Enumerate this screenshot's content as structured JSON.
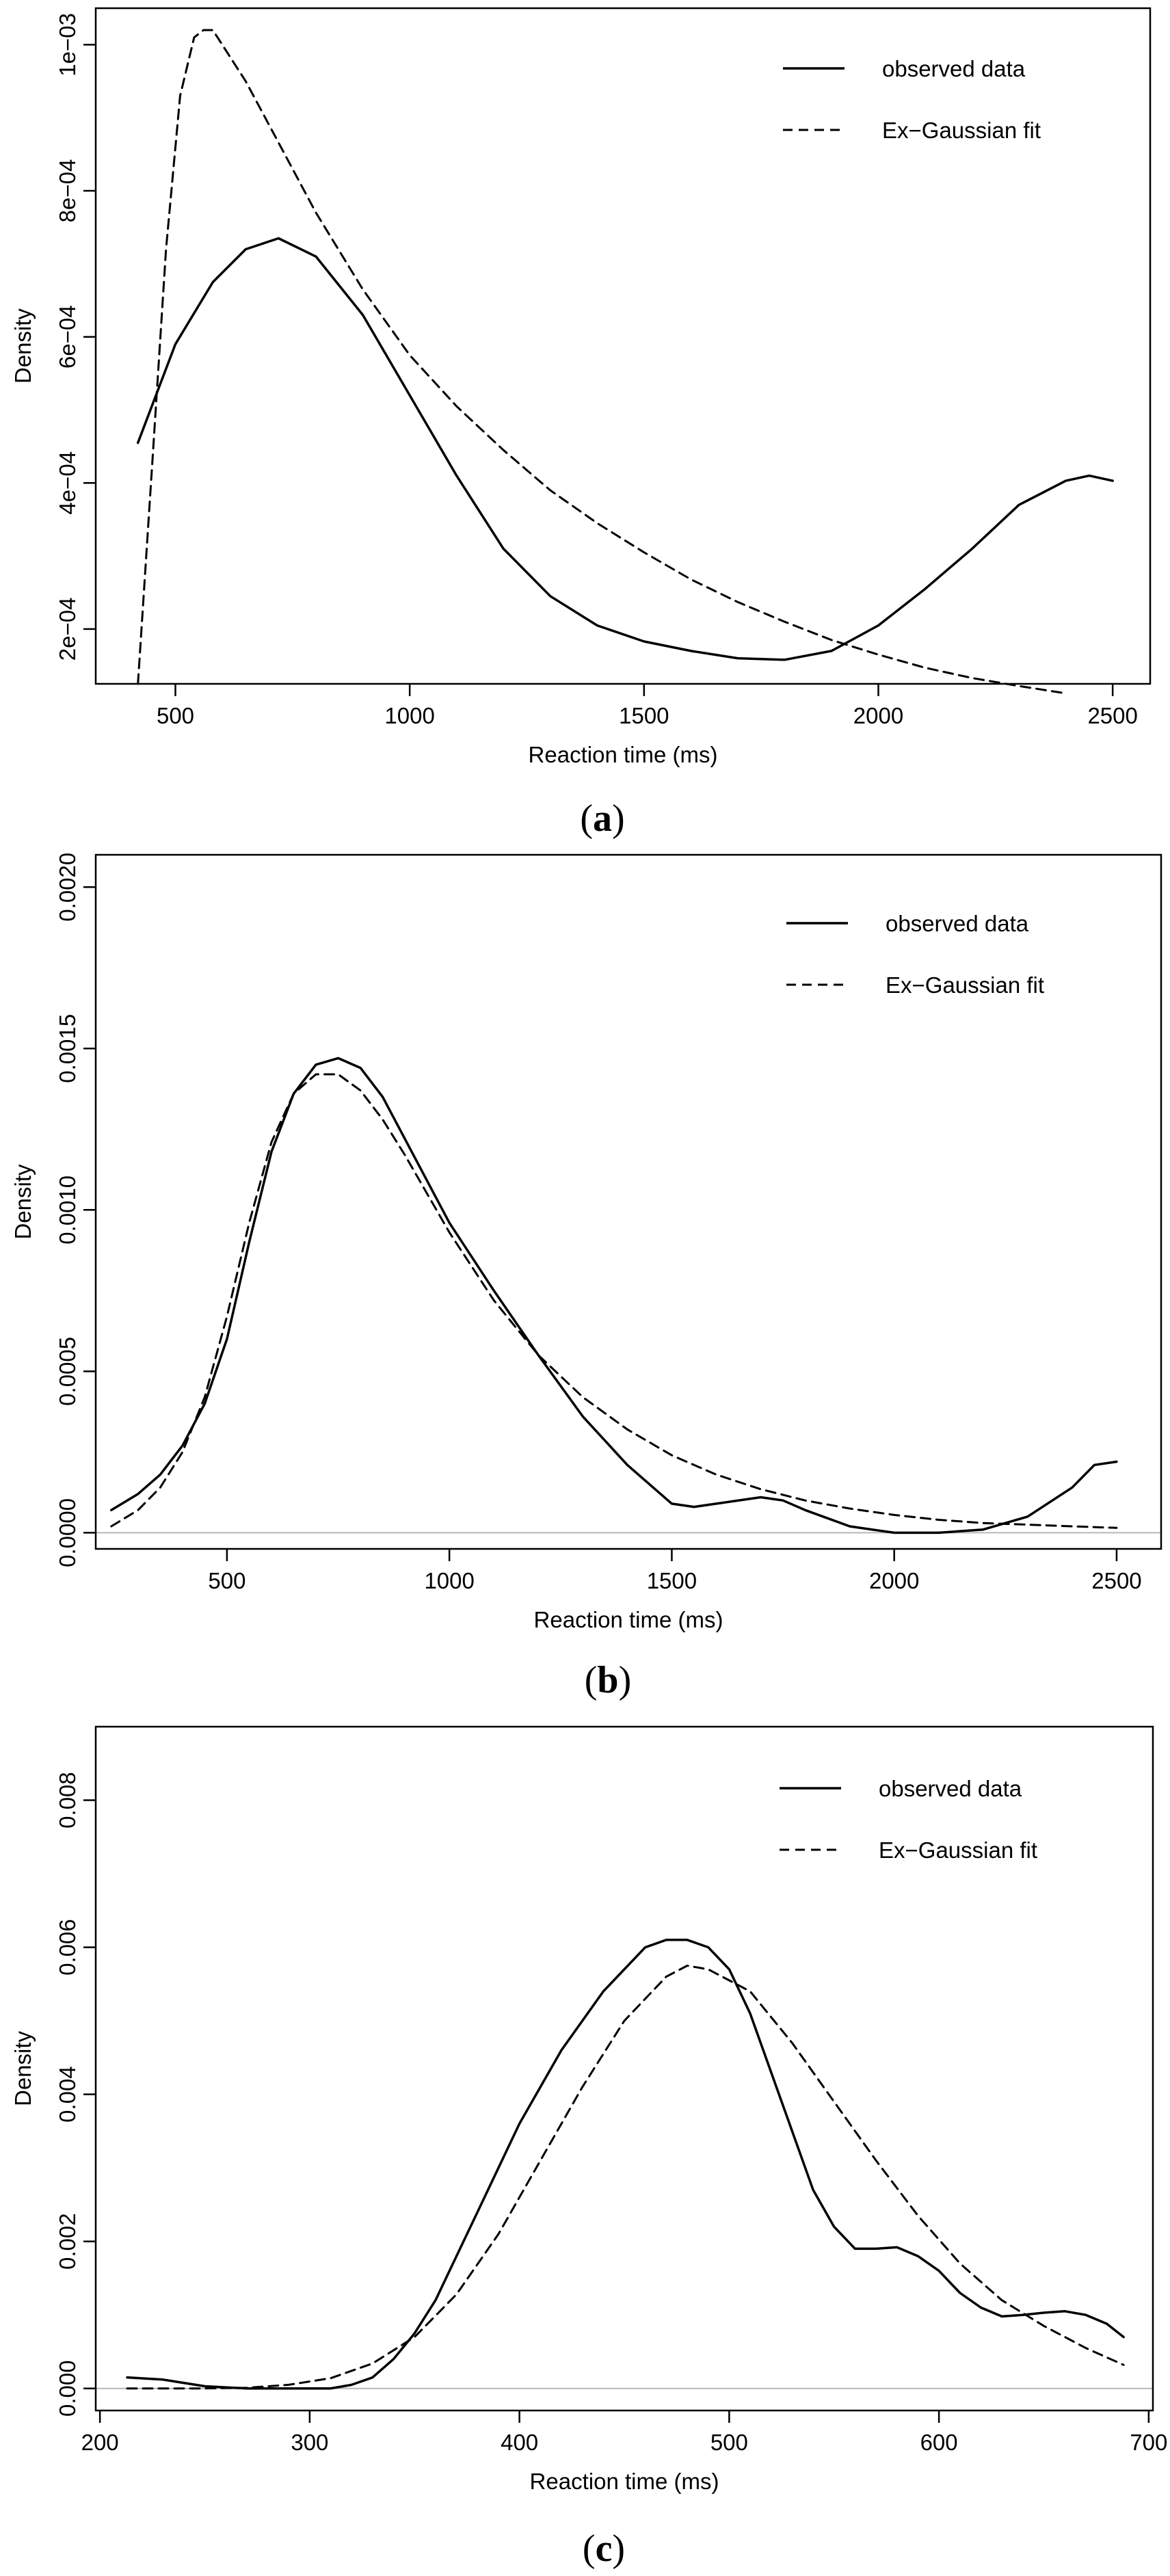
{
  "chart_data": [
    {
      "type": "line",
      "panel": "a",
      "xlabel": "Reaction time (ms)",
      "ylabel": "Density",
      "xlim": [
        330,
        2580
      ],
      "ylim": [
        0.000125,
        0.00105
      ],
      "xticks": [
        500,
        1000,
        1500,
        2000,
        2500
      ],
      "xtick_labels": [
        "500",
        "1000",
        "1500",
        "2000",
        "2500"
      ],
      "yticks": [
        0.0002,
        0.0004,
        0.0006,
        0.0008,
        0.001
      ],
      "ytick_labels": [
        "2e−04",
        "4e−04",
        "6e−04",
        "8e−04",
        "1e−03"
      ],
      "zero_line": false,
      "legend": [
        "observed data",
        "Ex−Gaussian fit"
      ],
      "legend_position": "top-right",
      "series": [
        {
          "name": "observed data",
          "style": "solid",
          "x": [
            420,
            500,
            580,
            650,
            720,
            800,
            900,
            1000,
            1100,
            1200,
            1300,
            1400,
            1500,
            1600,
            1700,
            1800,
            1900,
            2000,
            2100,
            2200,
            2300,
            2400,
            2450,
            2500
          ],
          "y": [
            0.000455,
            0.00059,
            0.000675,
            0.00072,
            0.000735,
            0.00071,
            0.00063,
            0.00052,
            0.00041,
            0.00031,
            0.000245,
            0.000205,
            0.000183,
            0.00017,
            0.00016,
            0.000158,
            0.00017,
            0.000205,
            0.000255,
            0.00031,
            0.00037,
            0.000403,
            0.00041,
            0.000403
          ]
        },
        {
          "name": "Ex−Gaussian fit",
          "style": "dashed",
          "x": [
            420,
            450,
            480,
            510,
            540,
            560,
            580,
            600,
            650,
            700,
            800,
            900,
            1000,
            1100,
            1200,
            1300,
            1400,
            1500,
            1600,
            1700,
            1800,
            1900,
            2000,
            2100,
            2200,
            2300,
            2400
          ],
          "y": [
            0.000125,
            0.00042,
            0.00072,
            0.00093,
            0.00101,
            0.00102,
            0.00102,
            0.001,
            0.00095,
            0.00089,
            0.00077,
            0.000665,
            0.000575,
            0.000505,
            0.000445,
            0.00039,
            0.000345,
            0.000305,
            0.000268,
            0.000237,
            0.00021,
            0.000185,
            0.000165,
            0.000147,
            0.000133,
            0.000122,
            0.000112
          ]
        }
      ]
    },
    {
      "type": "line",
      "panel": "b",
      "xlabel": "Reaction time (ms)",
      "ylabel": "Density",
      "xlim": [
        205,
        2600
      ],
      "ylim": [
        -5e-05,
        0.0021
      ],
      "xticks": [
        500,
        1000,
        1500,
        2000,
        2500
      ],
      "xtick_labels": [
        "500",
        "1000",
        "1500",
        "2000",
        "2500"
      ],
      "yticks": [
        0,
        0.0005,
        0.001,
        0.0015,
        0.002
      ],
      "ytick_labels": [
        "0.0000",
        "0.0005",
        "0.0010",
        "0.0015",
        "0.0020"
      ],
      "zero_line": true,
      "legend": [
        "observed data",
        "Ex−Gaussian fit"
      ],
      "legend_position": "top-right",
      "series": [
        {
          "name": "observed data",
          "style": "solid",
          "x": [
            240,
            300,
            350,
            400,
            450,
            500,
            550,
            600,
            650,
            700,
            750,
            800,
            850,
            900,
            1000,
            1100,
            1200,
            1300,
            1400,
            1500,
            1550,
            1600,
            1700,
            1750,
            1800,
            1900,
            2000,
            2100,
            2200,
            2300,
            2400,
            2450,
            2500
          ],
          "y": [
            7e-05,
            0.00012,
            0.00018,
            0.00027,
            0.0004,
            0.0006,
            0.0009,
            0.00118,
            0.00136,
            0.00145,
            0.00147,
            0.00144,
            0.00135,
            0.00122,
            0.00096,
            0.00075,
            0.00055,
            0.00036,
            0.00021,
            9e-05,
            8e-05,
            9e-05,
            0.00011,
            0.0001,
            7e-05,
            2e-05,
            0.0,
            0.0,
            1e-05,
            5e-05,
            0.00014,
            0.00021,
            0.00022
          ]
        },
        {
          "name": "Ex−Gaussian fit",
          "style": "dashed",
          "x": [
            240,
            300,
            350,
            400,
            450,
            500,
            550,
            600,
            650,
            700,
            750,
            800,
            850,
            900,
            1000,
            1100,
            1200,
            1300,
            1400,
            1500,
            1600,
            1700,
            1800,
            1900,
            2000,
            2100,
            2200,
            2300,
            2400,
            2500
          ],
          "y": [
            2e-05,
            7e-05,
            0.00014,
            0.00025,
            0.00042,
            0.00067,
            0.00096,
            0.00121,
            0.00136,
            0.00142,
            0.00142,
            0.00137,
            0.00128,
            0.00117,
            0.00093,
            0.00072,
            0.00055,
            0.00042,
            0.00032,
            0.00024,
            0.00018,
            0.000135,
            0.0001,
            7.5e-05,
            5.5e-05,
            4e-05,
            3e-05,
            2.5e-05,
            2e-05,
            1.5e-05
          ]
        }
      ]
    },
    {
      "type": "line",
      "panel": "c",
      "xlabel": "Reaction time (ms)",
      "ylabel": "Density",
      "xlim": [
        198,
        702
      ],
      "ylim": [
        -0.0003,
        0.009
      ],
      "xticks": [
        200,
        300,
        400,
        500,
        600,
        700
      ],
      "xtick_labels": [
        "200",
        "300",
        "400",
        "500",
        "600",
        "700"
      ],
      "yticks": [
        0,
        0.002,
        0.004,
        0.006,
        0.008
      ],
      "ytick_labels": [
        "0.000",
        "0.002",
        "0.004",
        "0.006",
        "0.008"
      ],
      "zero_line": true,
      "legend": [
        "observed data",
        "Ex−Gaussian fit"
      ],
      "legend_position": "top-right",
      "series": [
        {
          "name": "observed data",
          "style": "solid",
          "x": [
            213,
            230,
            250,
            270,
            290,
            310,
            320,
            330,
            340,
            350,
            360,
            380,
            400,
            420,
            440,
            460,
            470,
            480,
            490,
            500,
            510,
            520,
            530,
            540,
            550,
            560,
            570,
            580,
            590,
            600,
            610,
            620,
            630,
            640,
            650,
            660,
            670,
            680,
            688
          ],
          "y": [
            0.00015,
            0.00012,
            3e-05,
            0.0,
            0.0,
            0.0,
            5e-05,
            0.00015,
            0.0004,
            0.00075,
            0.0012,
            0.0024,
            0.0036,
            0.0046,
            0.0054,
            0.006,
            0.0061,
            0.0061,
            0.006,
            0.0057,
            0.0051,
            0.0043,
            0.0035,
            0.0027,
            0.0022,
            0.0019,
            0.0019,
            0.00192,
            0.0018,
            0.0016,
            0.0013,
            0.0011,
            0.00098,
            0.001,
            0.00103,
            0.00105,
            0.001,
            0.00088,
            0.0007
          ]
        },
        {
          "name": "Ex−Gaussian fit",
          "style": "dashed",
          "x": [
            213,
            230,
            250,
            270,
            290,
            310,
            330,
            350,
            370,
            390,
            410,
            430,
            450,
            470,
            480,
            490,
            510,
            530,
            550,
            570,
            590,
            610,
            630,
            650,
            670,
            688
          ],
          "y": [
            0.0,
            0.0,
            0.0,
            1e-05,
            5e-05,
            0.00014,
            0.00034,
            0.0007,
            0.00128,
            0.0021,
            0.0031,
            0.0041,
            0.005,
            0.0056,
            0.00575,
            0.0057,
            0.0054,
            0.0047,
            0.0039,
            0.0031,
            0.00235,
            0.0017,
            0.0012,
            0.00085,
            0.00055,
            0.00032
          ]
        }
      ]
    }
  ],
  "panel_labels": {
    "a": {
      "open": "(",
      "letter": "a",
      "close": ")"
    },
    "b": {
      "open": "(",
      "letter": "b",
      "close": ")"
    },
    "c": {
      "open": "(",
      "letter": "c",
      "close": ")"
    }
  }
}
